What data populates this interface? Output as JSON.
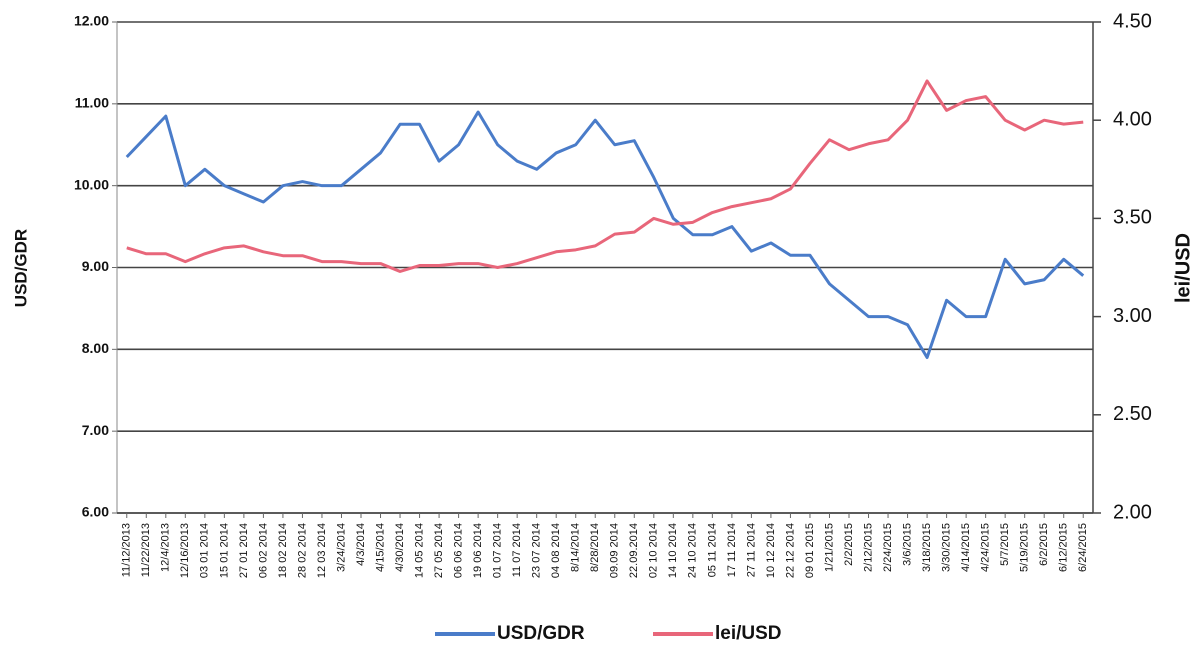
{
  "chart_data": {
    "type": "line",
    "y_label": "USD/GDR",
    "y2_label": "lei/USD",
    "categories": [
      "11/12/2013",
      "11/22/2013",
      "12/4/2013",
      "12/16/2013",
      "03 01 2014",
      "15 01 2014",
      "27 01 2014",
      "06 02 2014",
      "18 02 2014",
      "28 02 2014",
      "12 03 2014",
      "3/24/2014",
      "4/3/2014",
      "4/15/2014",
      "4/30/2014",
      "14 05 2014",
      "27 05 2014",
      "06 06 2014",
      "19 06 2014",
      "01 07 2014",
      "11 07 2014",
      "23 07 2014",
      "04 08 2014",
      "8/14/2014",
      "8/28/2014",
      "09.09 2014",
      "22.09.2014",
      "02 10 2014",
      "14 10 2014",
      "24 10 2014",
      "05 11 2014",
      "17 11 2014",
      "27 11 2014",
      "10 12 2014",
      "22 12 2014",
      "09 01 2015",
      "1/21/2015",
      "2/2/2015",
      "2/12/2015",
      "2/24/2015",
      "3/6/2015",
      "3/18/2015",
      "3/30/2015",
      "4/14/2015",
      "4/24/2015",
      "5/7/2015",
      "5/19/2015",
      "6/2/2015",
      "6/12/2015",
      "6/24/2015"
    ],
    "series": [
      {
        "name": "USD/GDR",
        "color": "#4a7cc9",
        "values": [
          10.35,
          10.6,
          10.85,
          10.0,
          10.2,
          10.0,
          9.9,
          9.8,
          10.0,
          10.05,
          10.0,
          10.0,
          10.2,
          10.4,
          10.75,
          10.75,
          10.3,
          10.5,
          10.9,
          10.5,
          10.3,
          10.2,
          10.4,
          10.5,
          10.8,
          10.5,
          10.55,
          10.1,
          9.6,
          9.4,
          9.4,
          9.5,
          9.2,
          9.3,
          9.15,
          9.15,
          8.8,
          8.6,
          8.4,
          8.4,
          8.3,
          7.9,
          8.6,
          8.4,
          8.4,
          9.1,
          8.8,
          8.85,
          9.1,
          8.9
        ]
      },
      {
        "name": "lei/USD",
        "color": "#e8667a",
        "axis": "y2",
        "values": [
          3.35,
          3.32,
          3.32,
          3.28,
          3.32,
          3.35,
          3.36,
          3.33,
          3.31,
          3.31,
          3.28,
          3.28,
          3.27,
          3.27,
          3.23,
          3.26,
          3.26,
          3.27,
          3.27,
          3.25,
          3.27,
          3.3,
          3.33,
          3.34,
          3.36,
          3.42,
          3.43,
          3.5,
          3.47,
          3.48,
          3.53,
          3.56,
          3.58,
          3.6,
          3.65,
          3.78,
          3.9,
          3.85,
          3.88,
          3.9,
          4.0,
          4.2,
          4.05,
          4.1,
          4.12,
          4.0,
          3.95,
          4.0,
          3.98,
          3.99
        ]
      }
    ],
    "ylim": [
      6,
      12
    ],
    "yticks": [
      {
        "value": 6,
        "label": "6.00"
      },
      {
        "value": 7,
        "label": "7.00"
      },
      {
        "value": 8,
        "label": "8.00"
      },
      {
        "value": 9,
        "label": "9.00"
      },
      {
        "value": 10,
        "label": "10.00"
      },
      {
        "value": 11,
        "label": "11.00"
      },
      {
        "value": 12,
        "label": "12.00"
      }
    ],
    "y2lim": [
      2,
      4.5
    ],
    "y2ticks": [
      {
        "value": 2,
        "label": "2.00"
      },
      {
        "value": 2.5,
        "label": "2.50"
      },
      {
        "value": 3,
        "label": "3.00"
      },
      {
        "value": 3.5,
        "label": "3.50"
      },
      {
        "value": 4,
        "label": "4.00"
      },
      {
        "value": 4.5,
        "label": "4.50"
      }
    ],
    "grid": true,
    "legend": "bottom"
  }
}
